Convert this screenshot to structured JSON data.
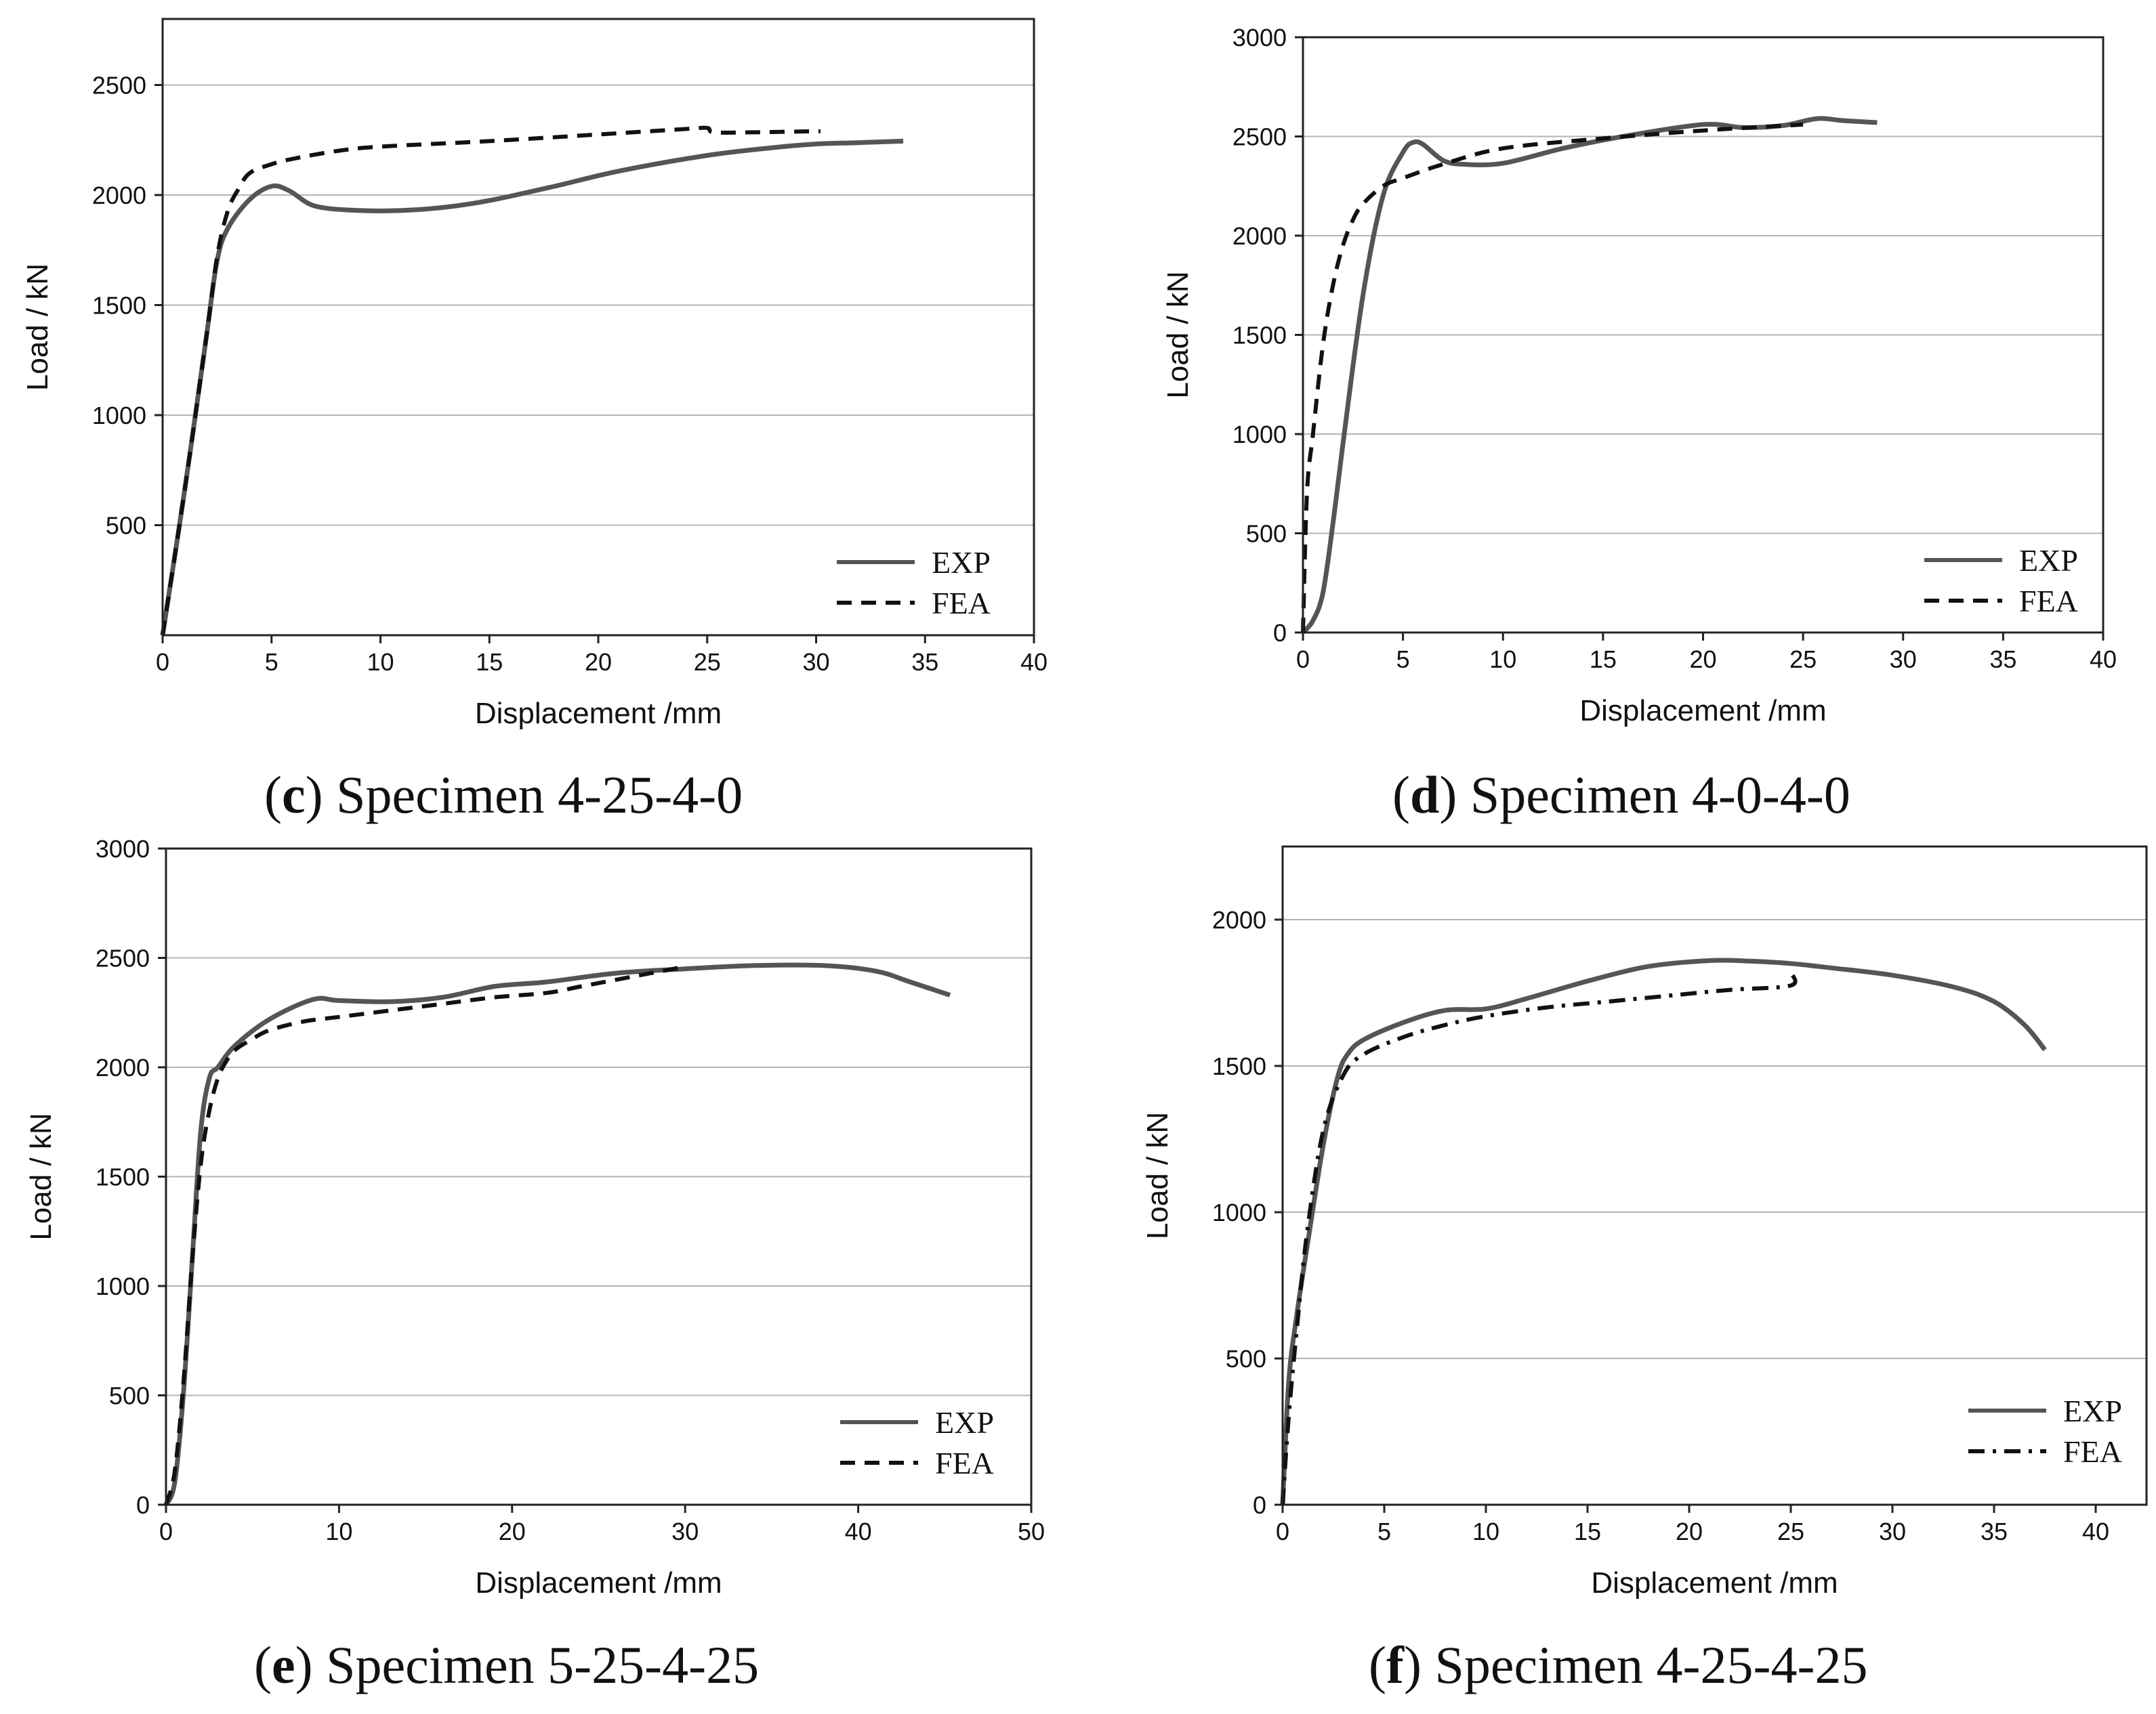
{
  "chart_data": [
    {
      "type": "line",
      "caption": {
        "open": "(",
        "letter": "c",
        "text": ") Specimen 4-25-4-0"
      },
      "xlabel": "Displacement /mm",
      "ylabel": "Load / kN",
      "xlim": [
        0,
        40
      ],
      "ylim": [
        0,
        2800
      ],
      "xticks": [
        0,
        5,
        10,
        15,
        20,
        25,
        30,
        35,
        40
      ],
      "yticks": [
        500,
        1000,
        1500,
        2000,
        2500
      ],
      "grid": true,
      "legend_position": "bottom-right",
      "series": [
        {
          "name": "EXP",
          "style": "solid",
          "color": "#555555",
          "x": [
            0,
            1,
            2,
            2.5,
            3,
            4,
            5,
            5.8,
            7,
            9,
            11,
            13,
            15,
            18,
            21,
            25,
            28,
            30,
            32,
            34
          ],
          "y": [
            0,
            650,
            1350,
            1700,
            1850,
            1980,
            2040,
            2020,
            1950,
            1930,
            1930,
            1945,
            1975,
            2040,
            2110,
            2180,
            2215,
            2232,
            2238,
            2245
          ]
        },
        {
          "name": "FEA",
          "style": "dashed",
          "color": "#111111",
          "x": [
            0,
            1,
            2,
            2.5,
            3,
            3.5,
            4,
            5,
            6,
            8,
            10,
            15,
            20,
            24,
            25,
            25.3,
            27,
            30.2
          ],
          "y": [
            0,
            650,
            1350,
            1720,
            1930,
            2030,
            2100,
            2140,
            2165,
            2200,
            2220,
            2245,
            2275,
            2300,
            2305,
            2285,
            2285,
            2290
          ]
        }
      ]
    },
    {
      "type": "line",
      "caption": {
        "open": "(",
        "letter": "d",
        "text": ") Specimen 4-0-4-0"
      },
      "xlabel": "Displacement /mm",
      "ylabel": "Load / kN",
      "xlim": [
        0,
        40
      ],
      "ylim": [
        0,
        3000
      ],
      "xticks": [
        0,
        5,
        10,
        15,
        20,
        25,
        30,
        35,
        40
      ],
      "yticks": [
        0,
        500,
        1000,
        1500,
        2000,
        2500,
        3000
      ],
      "grid": true,
      "legend_position": "bottom-right",
      "series": [
        {
          "name": "EXP",
          "style": "solid",
          "color": "#555555",
          "x": [
            0,
            0.5,
            1,
            1.5,
            2,
            3,
            4,
            5,
            5.5,
            6,
            7,
            8,
            10,
            13,
            16,
            20,
            22,
            24,
            25.7,
            27,
            28.7
          ],
          "y": [
            0,
            60,
            200,
            550,
            950,
            1700,
            2200,
            2420,
            2470,
            2460,
            2380,
            2360,
            2365,
            2440,
            2500,
            2560,
            2545,
            2555,
            2590,
            2580,
            2570
          ]
        },
        {
          "name": "FEA",
          "style": "dashed",
          "color": "#111111",
          "x": [
            0,
            0.2,
            0.5,
            1,
            1.5,
            2,
            2.5,
            3,
            4,
            5,
            7,
            10,
            15,
            20,
            25
          ],
          "y": [
            0,
            700,
            1000,
            1450,
            1750,
            1950,
            2080,
            2160,
            2250,
            2290,
            2360,
            2440,
            2490,
            2530,
            2560
          ]
        }
      ]
    },
    {
      "type": "line",
      "caption": {
        "open": "(",
        "letter": "e",
        "text": ") Specimen 5-25-4-25"
      },
      "xlabel": "Displacement /mm",
      "ylabel": "Load / kN",
      "xlim": [
        0,
        50
      ],
      "ylim": [
        0,
        3000
      ],
      "xticks": [
        0,
        10,
        20,
        30,
        40,
        50
      ],
      "yticks": [
        0,
        500,
        1000,
        1500,
        2000,
        2500,
        3000
      ],
      "grid": true,
      "legend_position": "bottom-right",
      "series": [
        {
          "name": "EXP",
          "style": "solid",
          "color": "#555555",
          "x": [
            0,
            0.5,
            1,
            1.5,
            2,
            2.5,
            3,
            4,
            6,
            8.5,
            10,
            13,
            16,
            19,
            22,
            26,
            30,
            34,
            38,
            41,
            43,
            45.3
          ],
          "y": [
            0,
            100,
            500,
            1100,
            1700,
            1950,
            2000,
            2100,
            2220,
            2310,
            2305,
            2300,
            2320,
            2370,
            2390,
            2430,
            2450,
            2465,
            2465,
            2440,
            2390,
            2330
          ]
        },
        {
          "name": "FEA",
          "style": "dashed",
          "color": "#111111",
          "x": [
            0,
            0.5,
            1,
            1.5,
            2,
            2.5,
            3,
            3.5,
            4,
            5,
            6,
            8,
            10,
            13,
            16,
            19,
            22,
            24,
            26,
            28,
            30
          ],
          "y": [
            0,
            150,
            550,
            1100,
            1550,
            1800,
            1950,
            2030,
            2080,
            2130,
            2170,
            2210,
            2230,
            2260,
            2290,
            2320,
            2340,
            2370,
            2400,
            2430,
            2460
          ]
        }
      ]
    },
    {
      "type": "line",
      "caption": {
        "open": "(",
        "letter": "f",
        "text": ") Specimen 4-25-4-25"
      },
      "xlabel": "Displacement /mm",
      "ylabel": "Load / kN",
      "xlim": [
        0,
        42.5
      ],
      "ylim": [
        0,
        2250
      ],
      "xticks": [
        0,
        5,
        10,
        15,
        20,
        25,
        30,
        35,
        40
      ],
      "yticks": [
        0,
        500,
        1000,
        1500,
        2000
      ],
      "grid": true,
      "legend_position": "bottom-right",
      "series": [
        {
          "name": "EXP",
          "style": "solid",
          "color": "#555555",
          "x": [
            0,
            0.3,
            0.7,
            1.2,
            2,
            2.7,
            3.2,
            4,
            6,
            8,
            10,
            12,
            15,
            18,
            21,
            23,
            25,
            27,
            30,
            33,
            35,
            36.5,
            37.5
          ],
          "y": [
            0,
            420,
            650,
            880,
            1230,
            1460,
            1540,
            1590,
            1650,
            1690,
            1695,
            1730,
            1790,
            1840,
            1860,
            1858,
            1850,
            1835,
            1810,
            1770,
            1720,
            1640,
            1555
          ]
        },
        {
          "name": "FEA",
          "style": "dash-dot",
          "color": "#111111",
          "x": [
            0,
            0.3,
            0.7,
            1.2,
            2,
            3,
            4,
            6,
            8,
            10,
            13,
            16,
            19,
            22,
            25,
            25
          ],
          "y": [
            0,
            300,
            600,
            930,
            1280,
            1470,
            1540,
            1600,
            1640,
            1670,
            1700,
            1720,
            1740,
            1760,
            1775,
            1820
          ]
        }
      ]
    }
  ]
}
